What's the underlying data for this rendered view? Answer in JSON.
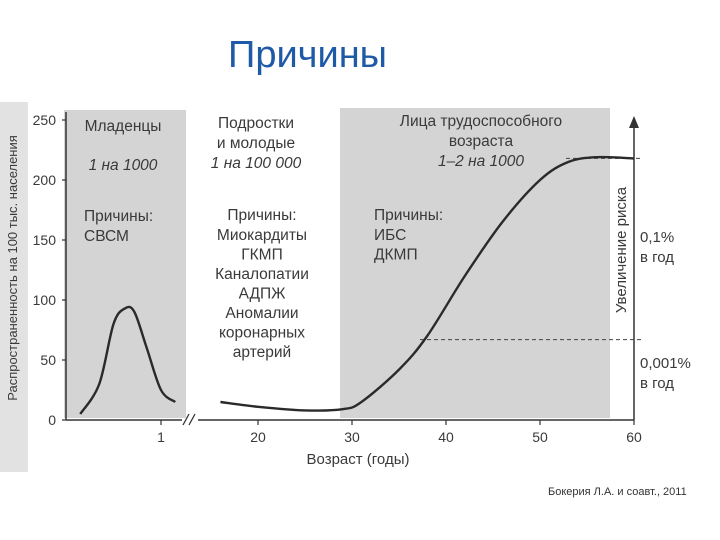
{
  "slide": {
    "title": "Причины",
    "credit": "Бокерия Л.А. и соавт., 2011"
  },
  "colors": {
    "title": "#1f5aa6",
    "shade": "#d4d4d4",
    "curve": "#2a2a2a"
  },
  "chart_data": {
    "type": "line",
    "ylabel": "Распространенность на 100 тыс. населения",
    "xlabel": "Возраст (годы)",
    "yticks": [
      "0",
      "50",
      "100",
      "150",
      "200",
      "250"
    ],
    "ylim": [
      0,
      250
    ],
    "xticks_infant": [
      "1"
    ],
    "xticks_main": [
      "20",
      "30",
      "40",
      "50",
      "60"
    ],
    "xlim_main": [
      15,
      60
    ],
    "grid": false,
    "infant_series": {
      "name": "Младенцы",
      "points": [
        [
          0.15,
          5
        ],
        [
          0.35,
          30
        ],
        [
          0.5,
          80
        ],
        [
          0.62,
          93
        ],
        [
          0.72,
          90
        ],
        [
          0.85,
          60
        ],
        [
          1.0,
          25
        ],
        [
          1.15,
          15
        ]
      ]
    },
    "main_series": {
      "points": [
        [
          16,
          15
        ],
        [
          20,
          11
        ],
        [
          25,
          8
        ],
        [
          29,
          9
        ],
        [
          31,
          15
        ],
        [
          35,
          42
        ],
        [
          38,
          70
        ],
        [
          42,
          120
        ],
        [
          46,
          165
        ],
        [
          50,
          200
        ],
        [
          53,
          215
        ],
        [
          56,
          219
        ],
        [
          60,
          218
        ]
      ]
    },
    "regions": [
      {
        "heading": [
          "Младенцы"
        ],
        "incidence": "1 на 1000",
        "causes_label": "Причины:",
        "causes": [
          "СВСМ"
        ]
      },
      {
        "heading": [
          "Подростки",
          "и молодые"
        ],
        "incidence": "1 на 100 000",
        "causes_label": "Причины:",
        "causes": [
          "Миокардиты",
          "ГКМП",
          "Каналопатии",
          "АДПЖ",
          "Аномалии",
          "коронарных",
          "артерий"
        ]
      },
      {
        "heading": [
          "Лица трудоспособного",
          "возраста"
        ],
        "incidence": "1–2 на 1000",
        "causes_label": "Причины:",
        "causes": [
          "ИБС",
          "ДКМП"
        ]
      }
    ],
    "risk": {
      "axis_label": "Увеличение риска",
      "high_value": 218,
      "high_label": [
        "0,1%",
        "в год"
      ],
      "low_value": 67,
      "low_label": [
        "0,001%",
        "в год"
      ]
    }
  }
}
